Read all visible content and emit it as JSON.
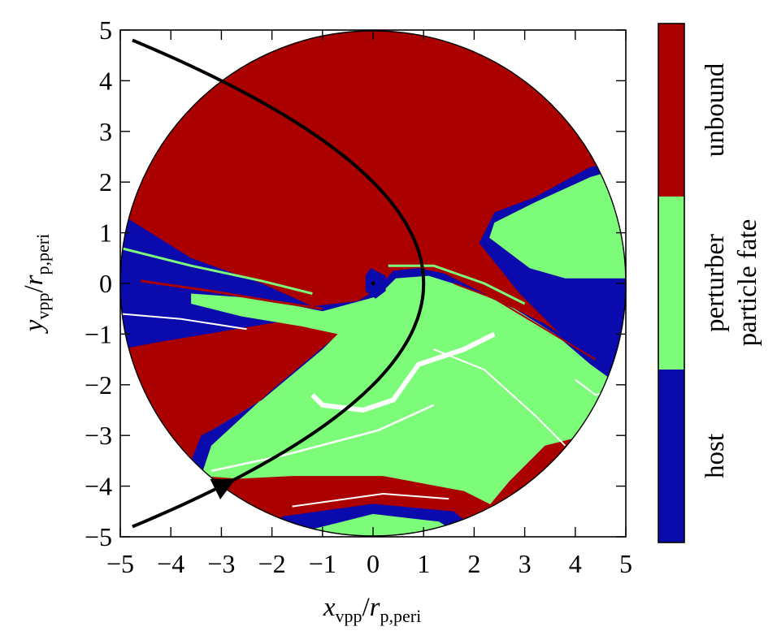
{
  "chart_data": {
    "type": "heatmap",
    "title": "",
    "xlabel": {
      "var": "x",
      "sub": "vpp",
      "den": "r",
      "den_sub": "p,peri"
    },
    "ylabel": {
      "var": "y",
      "sub": "vpp",
      "den": "r",
      "den_sub": "p,peri"
    },
    "xlim": [
      -5,
      5
    ],
    "ylim": [
      -5,
      5
    ],
    "xticks": [
      -5,
      -4,
      -3,
      -2,
      -1,
      0,
      1,
      2,
      3,
      4,
      5
    ],
    "yticks": [
      -5,
      -4,
      -3,
      -2,
      -1,
      0,
      1,
      2,
      3,
      4,
      5
    ],
    "xtick_labels": [
      "−5",
      "−4",
      "−3",
      "−2",
      "−1",
      "0",
      "1",
      "2",
      "3",
      "4",
      "5"
    ],
    "ytick_labels": [
      "−5",
      "−4",
      "−3",
      "−2",
      "−1",
      "0",
      "1",
      "2",
      "3",
      "4",
      "5"
    ],
    "disk_radius": 5,
    "disk_center": [
      0,
      5
    ],
    "grid": false,
    "orbit": {
      "pericenter": 1,
      "direction": "counter-clockwise"
    },
    "categories": [
      "host",
      "perturber",
      "unbound"
    ],
    "colors": {
      "host": "#0b0aad",
      "perturber": "#7dfc79",
      "unbound": "#ab0000"
    },
    "colorbar_title": "particle fate"
  }
}
